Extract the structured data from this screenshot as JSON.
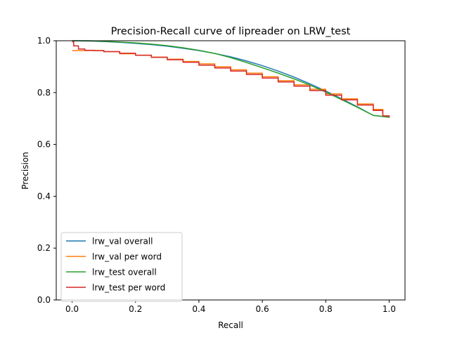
{
  "chart_data": {
    "type": "line",
    "title": "Precision-Recall curve of lipreader on LRW_test",
    "xlabel": "Recall",
    "ylabel": "Precision",
    "xlim": [
      -0.05,
      1.05
    ],
    "ylim": [
      0.0,
      1.0
    ],
    "xticks": [
      0.0,
      0.2,
      0.4,
      0.6,
      0.8,
      1.0
    ],
    "yticks": [
      0.0,
      0.2,
      0.4,
      0.6,
      0.8,
      1.0
    ],
    "xtick_labels": [
      "0.0",
      "0.2",
      "0.4",
      "0.6",
      "0.8",
      "1.0"
    ],
    "ytick_labels": [
      "0.0",
      "0.2",
      "0.4",
      "0.6",
      "0.8",
      "1.0"
    ],
    "grid": false,
    "legend_position": "lower-left",
    "series": [
      {
        "name": "lrw_val overall",
        "color": "#1f77b4",
        "step": false,
        "x": [
          0.0,
          0.05,
          0.1,
          0.15,
          0.2,
          0.25,
          0.3,
          0.35,
          0.4,
          0.45,
          0.5,
          0.55,
          0.6,
          0.65,
          0.7,
          0.75,
          0.8,
          0.85,
          0.9,
          0.95,
          1.0
        ],
        "y": [
          1.0,
          0.999,
          0.997,
          0.994,
          0.99,
          0.985,
          0.979,
          0.971,
          0.962,
          0.951,
          0.938,
          0.922,
          0.904,
          0.883,
          0.86,
          0.834,
          0.806,
          0.776,
          0.745,
          0.712,
          0.705
        ]
      },
      {
        "name": "lrw_val per word",
        "color": "#ff7f0e",
        "step": true,
        "x": [
          0.0,
          0.02,
          0.05,
          0.1,
          0.15,
          0.2,
          0.25,
          0.3,
          0.35,
          0.4,
          0.45,
          0.5,
          0.55,
          0.6,
          0.65,
          0.7,
          0.75,
          0.8,
          0.85,
          0.9,
          0.95,
          0.98,
          1.0
        ],
        "y": [
          0.962,
          0.962,
          0.962,
          0.958,
          0.95,
          0.944,
          0.937,
          0.929,
          0.92,
          0.911,
          0.9,
          0.888,
          0.875,
          0.861,
          0.846,
          0.83,
          0.813,
          0.795,
          0.776,
          0.756,
          0.735,
          0.71,
          0.705
        ]
      },
      {
        "name": "lrw_test overall",
        "color": "#2ca02c",
        "step": false,
        "x": [
          0.0,
          0.05,
          0.1,
          0.15,
          0.2,
          0.25,
          0.3,
          0.35,
          0.4,
          0.45,
          0.5,
          0.55,
          0.6,
          0.65,
          0.7,
          0.75,
          0.8,
          0.85,
          0.9,
          0.95,
          1.0
        ],
        "y": [
          1.0,
          1.0,
          0.998,
          0.995,
          0.992,
          0.987,
          0.981,
          0.973,
          0.963,
          0.951,
          0.935,
          0.916,
          0.896,
          0.875,
          0.853,
          0.829,
          0.802,
          0.773,
          0.743,
          0.712,
          0.705
        ]
      },
      {
        "name": "lrw_test per word",
        "color": "#d62728",
        "step": true,
        "x": [
          0.0,
          0.005,
          0.02,
          0.04,
          0.07,
          0.1,
          0.15,
          0.2,
          0.25,
          0.3,
          0.35,
          0.4,
          0.45,
          0.5,
          0.55,
          0.6,
          0.65,
          0.7,
          0.75,
          0.8,
          0.85,
          0.9,
          0.95,
          0.98,
          1.0
        ],
        "y": [
          0.996,
          0.98,
          0.968,
          0.963,
          0.962,
          0.958,
          0.952,
          0.944,
          0.936,
          0.927,
          0.917,
          0.906,
          0.895,
          0.883,
          0.87,
          0.856,
          0.841,
          0.825,
          0.808,
          0.79,
          0.772,
          0.752,
          0.731,
          0.71,
          0.703
        ]
      }
    ]
  }
}
